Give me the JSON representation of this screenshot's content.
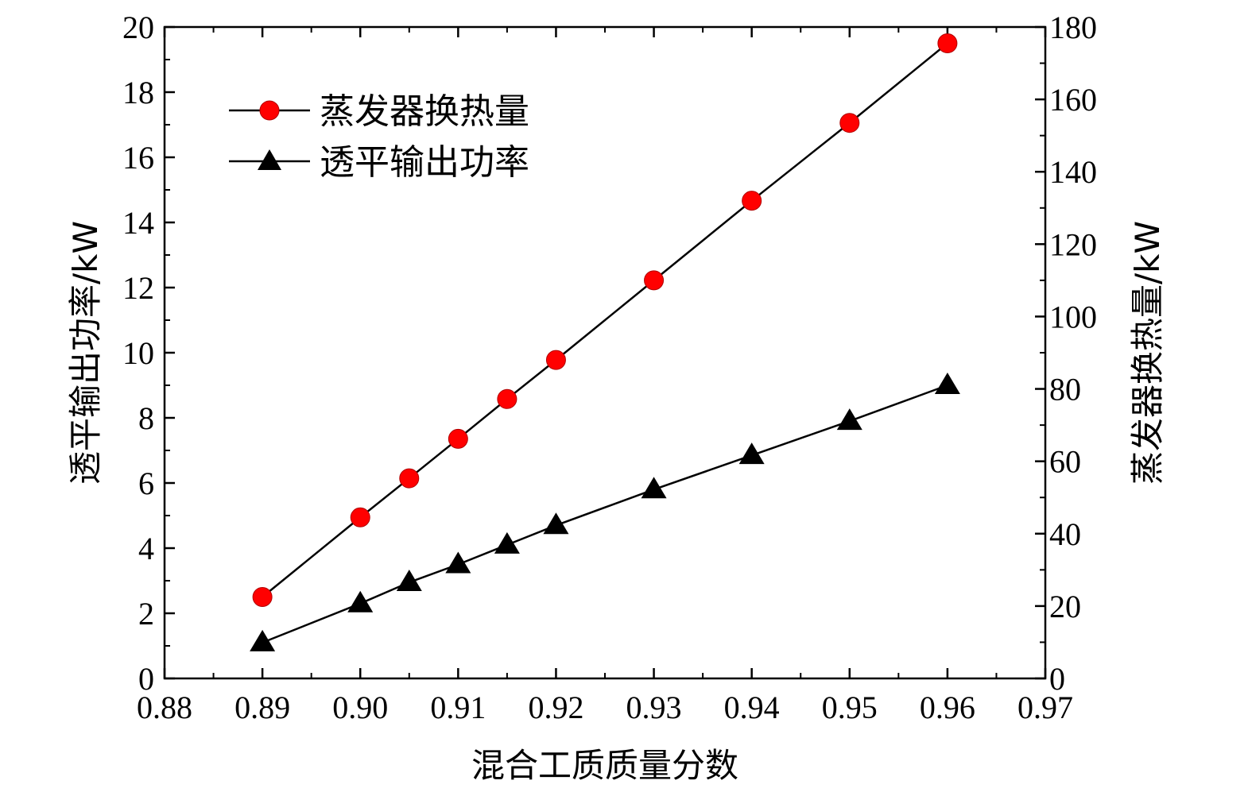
{
  "chart_data": {
    "type": "line",
    "x": [
      0.89,
      0.9,
      0.905,
      0.91,
      0.915,
      0.92,
      0.93,
      0.94,
      0.95,
      0.96
    ],
    "xlim": [
      0.88,
      0.97
    ],
    "xticks": [
      "0.88",
      "0.89",
      "0.90",
      "0.91",
      "0.92",
      "0.93",
      "0.94",
      "0.95",
      "0.96",
      "0.97"
    ],
    "xlabel": "混合工质质量分数",
    "ylabel_left": "透平输出功率/kW",
    "ylim_left": [
      0,
      20
    ],
    "yticks_left": [
      "0",
      "2",
      "4",
      "6",
      "8",
      "10",
      "12",
      "14",
      "16",
      "18",
      "20"
    ],
    "ylabel_right": "蒸发器换热量/kW",
    "ylim_right": [
      0,
      180
    ],
    "yticks_right": [
      "0",
      "20",
      "40",
      "60",
      "80",
      "100",
      "120",
      "140",
      "160",
      "180"
    ],
    "legend_position": "top-left",
    "grid": false,
    "series": [
      {
        "name": "蒸发器换热量",
        "axis": "right",
        "marker": "circle",
        "color": "#ff0000",
        "values": [
          22.5,
          44.5,
          55.3,
          66.2,
          77.2,
          88.0,
          110.0,
          132.0,
          153.5,
          175.5
        ]
      },
      {
        "name": "透平输出功率",
        "axis": "left",
        "marker": "triangle",
        "color": "#000000",
        "values": [
          1.1,
          2.3,
          2.95,
          3.5,
          4.1,
          4.7,
          5.8,
          6.85,
          7.9,
          9.0
        ]
      }
    ]
  }
}
